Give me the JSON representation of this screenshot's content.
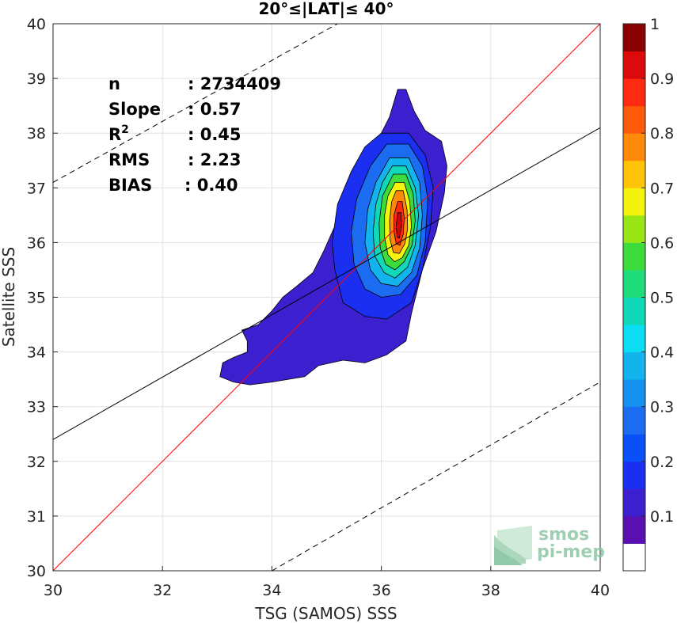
{
  "chart_data": {
    "type": "contour",
    "title": "20°≤|LAT|≤ 40°",
    "xlabel": "TSG (SAMOS) SSS",
    "ylabel": "Satellite SSS",
    "xlim": [
      30,
      40
    ],
    "ylim": [
      30,
      40
    ],
    "xticks": [
      "30",
      "32",
      "34",
      "36",
      "38",
      "40"
    ],
    "yticks": [
      "30",
      "31",
      "32",
      "33",
      "34",
      "35",
      "36",
      "37",
      "38",
      "39",
      "40"
    ],
    "grid": true,
    "stats": [
      {
        "label": "n",
        "value": ": 2734409"
      },
      {
        "label": "Slope",
        "value": ": 0.57"
      },
      {
        "label": "R",
        "sup": "2",
        "value": ": 0.45"
      },
      {
        "label": "RMS",
        "value": ": 2.23"
      },
      {
        "label": "BIAS",
        "value": ": 0.40"
      }
    ],
    "lines": {
      "one_to_one": {
        "color": "#ff0000",
        "from": [
          30,
          30
        ],
        "to": [
          40,
          40
        ]
      },
      "fit": {
        "color": "#000000",
        "from": [
          30,
          32.4
        ],
        "to": [
          40,
          38.1
        ]
      },
      "upper_dashed": {
        "color": "#000000",
        "from": [
          30,
          37.1
        ],
        "to": [
          35.2,
          40
        ]
      },
      "lower_dashed": {
        "color": "#000000",
        "from": [
          34,
          30
        ],
        "to": [
          40,
          33.45
        ]
      }
    },
    "contours": [
      {
        "level": 0.05,
        "color": "#3c1fce",
        "points": [
          [
            36.3,
            38.8
          ],
          [
            36.45,
            38.8
          ],
          [
            36.6,
            38.4
          ],
          [
            36.8,
            38.05
          ],
          [
            37.1,
            37.85
          ],
          [
            37.2,
            37.4
          ],
          [
            37.15,
            36.9
          ],
          [
            37.0,
            36.2
          ],
          [
            36.75,
            35.5
          ],
          [
            36.55,
            34.7
          ],
          [
            36.45,
            34.2
          ],
          [
            36.1,
            33.95
          ],
          [
            35.7,
            33.8
          ],
          [
            35.3,
            33.85
          ],
          [
            34.85,
            33.75
          ],
          [
            34.6,
            33.55
          ],
          [
            34.0,
            33.45
          ],
          [
            33.6,
            33.4
          ],
          [
            33.3,
            33.45
          ],
          [
            33.05,
            33.55
          ],
          [
            33.1,
            33.8
          ],
          [
            33.3,
            33.9
          ],
          [
            33.55,
            34.0
          ],
          [
            33.55,
            34.2
          ],
          [
            33.45,
            34.4
          ],
          [
            33.75,
            34.5
          ],
          [
            34.0,
            34.75
          ],
          [
            34.2,
            35.0
          ],
          [
            34.45,
            35.2
          ],
          [
            34.75,
            35.45
          ],
          [
            34.95,
            35.85
          ],
          [
            35.15,
            36.3
          ],
          [
            35.3,
            36.7
          ],
          [
            35.45,
            37.1
          ],
          [
            35.7,
            37.5
          ],
          [
            35.95,
            37.9
          ],
          [
            36.15,
            38.3
          ]
        ]
      },
      {
        "level": 0.15,
        "color": "#1a2ff0",
        "points": [
          [
            36.0,
            38.0
          ],
          [
            36.5,
            38.0
          ],
          [
            36.8,
            37.6
          ],
          [
            36.95,
            37.0
          ],
          [
            36.9,
            36.3
          ],
          [
            36.75,
            35.5
          ],
          [
            36.55,
            34.9
          ],
          [
            36.1,
            34.6
          ],
          [
            35.7,
            34.65
          ],
          [
            35.3,
            34.9
          ],
          [
            35.15,
            35.5
          ],
          [
            35.1,
            36.0
          ],
          [
            35.2,
            36.7
          ],
          [
            35.45,
            37.3
          ],
          [
            35.7,
            37.75
          ]
        ]
      },
      {
        "level": 0.25,
        "color": "#1c6cf2",
        "points": [
          [
            36.1,
            37.8
          ],
          [
            36.5,
            37.8
          ],
          [
            36.75,
            37.4
          ],
          [
            36.85,
            36.8
          ],
          [
            36.8,
            36.0
          ],
          [
            36.65,
            35.4
          ],
          [
            36.35,
            35.05
          ],
          [
            36.0,
            35.0
          ],
          [
            35.7,
            35.15
          ],
          [
            35.5,
            35.6
          ],
          [
            35.45,
            36.2
          ],
          [
            35.55,
            36.8
          ],
          [
            35.8,
            37.4
          ]
        ]
      },
      {
        "level": 0.35,
        "color": "#13b3ee",
        "points": [
          [
            36.15,
            37.55
          ],
          [
            36.5,
            37.55
          ],
          [
            36.7,
            37.1
          ],
          [
            36.75,
            36.5
          ],
          [
            36.7,
            35.9
          ],
          [
            36.55,
            35.45
          ],
          [
            36.3,
            35.2
          ],
          [
            36.0,
            35.25
          ],
          [
            35.8,
            35.5
          ],
          [
            35.7,
            36.0
          ],
          [
            35.75,
            36.6
          ],
          [
            35.9,
            37.1
          ]
        ]
      },
      {
        "level": 0.45,
        "color": "#10d8b8",
        "points": [
          [
            36.2,
            37.4
          ],
          [
            36.45,
            37.4
          ],
          [
            36.62,
            37.0
          ],
          [
            36.68,
            36.5
          ],
          [
            36.62,
            35.95
          ],
          [
            36.48,
            35.55
          ],
          [
            36.25,
            35.35
          ],
          [
            36.05,
            35.45
          ],
          [
            35.88,
            35.75
          ],
          [
            35.85,
            36.2
          ],
          [
            35.9,
            36.7
          ],
          [
            36.02,
            37.1
          ]
        ]
      },
      {
        "level": 0.55,
        "color": "#3ddc3d",
        "points": [
          [
            36.22,
            37.25
          ],
          [
            36.45,
            37.25
          ],
          [
            36.58,
            36.9
          ],
          [
            36.62,
            36.4
          ],
          [
            36.56,
            35.95
          ],
          [
            36.42,
            35.65
          ],
          [
            36.25,
            35.5
          ],
          [
            36.08,
            35.6
          ],
          [
            35.98,
            35.9
          ],
          [
            35.96,
            36.35
          ],
          [
            36.02,
            36.85
          ]
        ]
      },
      {
        "level": 0.65,
        "color": "#f3f30e",
        "points": [
          [
            36.25,
            37.1
          ],
          [
            36.42,
            37.1
          ],
          [
            36.52,
            36.75
          ],
          [
            36.55,
            36.3
          ],
          [
            36.5,
            35.95
          ],
          [
            36.38,
            35.72
          ],
          [
            36.24,
            35.65
          ],
          [
            36.12,
            35.78
          ],
          [
            36.06,
            36.1
          ],
          [
            36.06,
            36.5
          ],
          [
            36.12,
            36.85
          ]
        ]
      },
      {
        "level": 0.75,
        "color": "#ff8a0a",
        "points": [
          [
            36.27,
            36.95
          ],
          [
            36.4,
            36.95
          ],
          [
            36.47,
            36.6
          ],
          [
            36.48,
            36.25
          ],
          [
            36.43,
            35.98
          ],
          [
            36.33,
            35.8
          ],
          [
            36.22,
            35.82
          ],
          [
            36.16,
            36.05
          ],
          [
            36.15,
            36.4
          ],
          [
            36.19,
            36.75
          ]
        ]
      },
      {
        "level": 0.85,
        "color": "#ff2a10",
        "points": [
          [
            36.3,
            36.75
          ],
          [
            36.38,
            36.75
          ],
          [
            36.42,
            36.45
          ],
          [
            36.4,
            36.15
          ],
          [
            36.34,
            35.95
          ],
          [
            36.27,
            35.98
          ],
          [
            36.23,
            36.2
          ],
          [
            36.23,
            36.5
          ]
        ]
      },
      {
        "level": 0.95,
        "color": "#c80a0a",
        "points": [
          [
            36.3,
            36.55
          ],
          [
            36.36,
            36.55
          ],
          [
            36.37,
            36.3
          ],
          [
            36.33,
            36.08
          ],
          [
            36.29,
            36.1
          ],
          [
            36.27,
            36.3
          ]
        ]
      }
    ],
    "colorbar": {
      "ticks": [
        "0.1",
        "0.2",
        "0.3",
        "0.4",
        "0.5",
        "0.6",
        "0.7",
        "0.8",
        "0.9",
        "1"
      ],
      "colors": [
        "#ffffff",
        "#5a0fb0",
        "#3c1fce",
        "#1a2ff0",
        "#0a50f8",
        "#1c6cf2",
        "#1490f0",
        "#13b3ee",
        "#0bdef2",
        "#10d8b8",
        "#1fdc7a",
        "#3ddc3d",
        "#99e616",
        "#f3f30e",
        "#ffc30a",
        "#ff8a0a",
        "#ff5a0a",
        "#ff2a10",
        "#dc0a0a",
        "#8b0000"
      ]
    }
  },
  "logo": {
    "line1": "smos",
    "line2": "pi-mep"
  }
}
